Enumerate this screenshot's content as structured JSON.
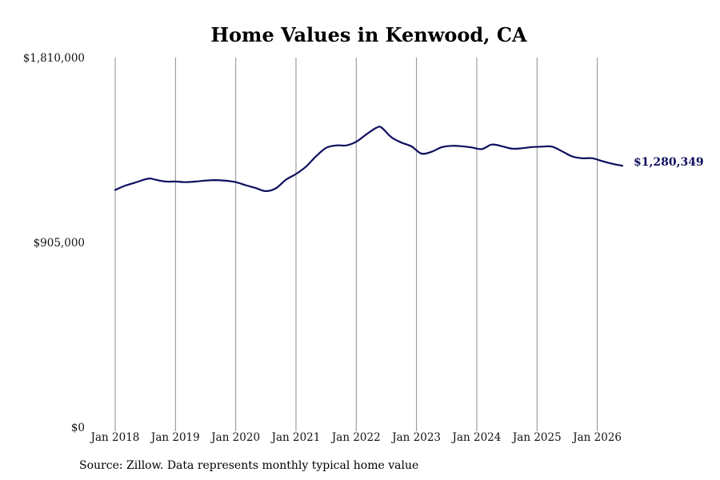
{
  "chart_data": {
    "type": "line",
    "title": "Home Values in Kenwood, CA",
    "source": "Source: Zillow. Data represents monthly typical home value",
    "xlabel": "",
    "ylabel": "",
    "ylim": [
      0,
      1810000
    ],
    "y_ticks": [
      {
        "value": 0,
        "label": "$0"
      },
      {
        "value": 905000,
        "label": "$905,000"
      },
      {
        "value": 1810000,
        "label": "$1,810,000"
      }
    ],
    "x_ticks": [
      "Jan 2018",
      "Jan 2019",
      "Jan 2020",
      "Jan 2021",
      "Jan 2022",
      "Jan 2023",
      "Jan 2024",
      "Jan 2025",
      "Jan 2026"
    ],
    "x_range": [
      "2018-01",
      "2026-06"
    ],
    "grid": "vertical",
    "line_color": "#0d0d5e",
    "grid_color": "#8c8c8c",
    "end_label": "$1,280,349",
    "series": [
      {
        "x": [
          "2018-01",
          "2018-03",
          "2018-05",
          "2018-07",
          "2018-08",
          "2018-09",
          "2018-11",
          "2019-01",
          "2019-03",
          "2019-05",
          "2019-07",
          "2019-09",
          "2019-11",
          "2020-01",
          "2020-03",
          "2020-05",
          "2020-07",
          "2020-09",
          "2020-11",
          "2021-01",
          "2021-03",
          "2021-05",
          "2021-07",
          "2021-09",
          "2021-11",
          "2022-01",
          "2022-03",
          "2022-05",
          "2022-06",
          "2022-08",
          "2022-10",
          "2022-12",
          "2023-02",
          "2023-04",
          "2023-06",
          "2023-08",
          "2023-10",
          "2023-12",
          "2024-02",
          "2024-04",
          "2024-06",
          "2024-08",
          "2024-10",
          "2024-12",
          "2025-02",
          "2025-04",
          "2025-06",
          "2025-08",
          "2025-10",
          "2025-12",
          "2026-02",
          "2026-04",
          "2026-06"
        ],
        "values": [
          1162000,
          1183000,
          1198000,
          1214000,
          1218000,
          1212000,
          1203000,
          1203000,
          1200000,
          1203000,
          1208000,
          1210000,
          1207000,
          1200000,
          1185000,
          1171000,
          1156000,
          1170000,
          1212000,
          1240000,
          1276000,
          1327000,
          1368000,
          1380000,
          1380000,
          1398000,
          1434000,
          1466000,
          1468000,
          1420000,
          1394000,
          1375000,
          1340000,
          1349000,
          1371000,
          1378000,
          1376000,
          1370000,
          1362000,
          1384000,
          1376000,
          1364000,
          1366000,
          1372000,
          1374000,
          1374000,
          1351000,
          1326000,
          1317000,
          1317000,
          1303000,
          1290000,
          1280349
        ]
      }
    ]
  }
}
